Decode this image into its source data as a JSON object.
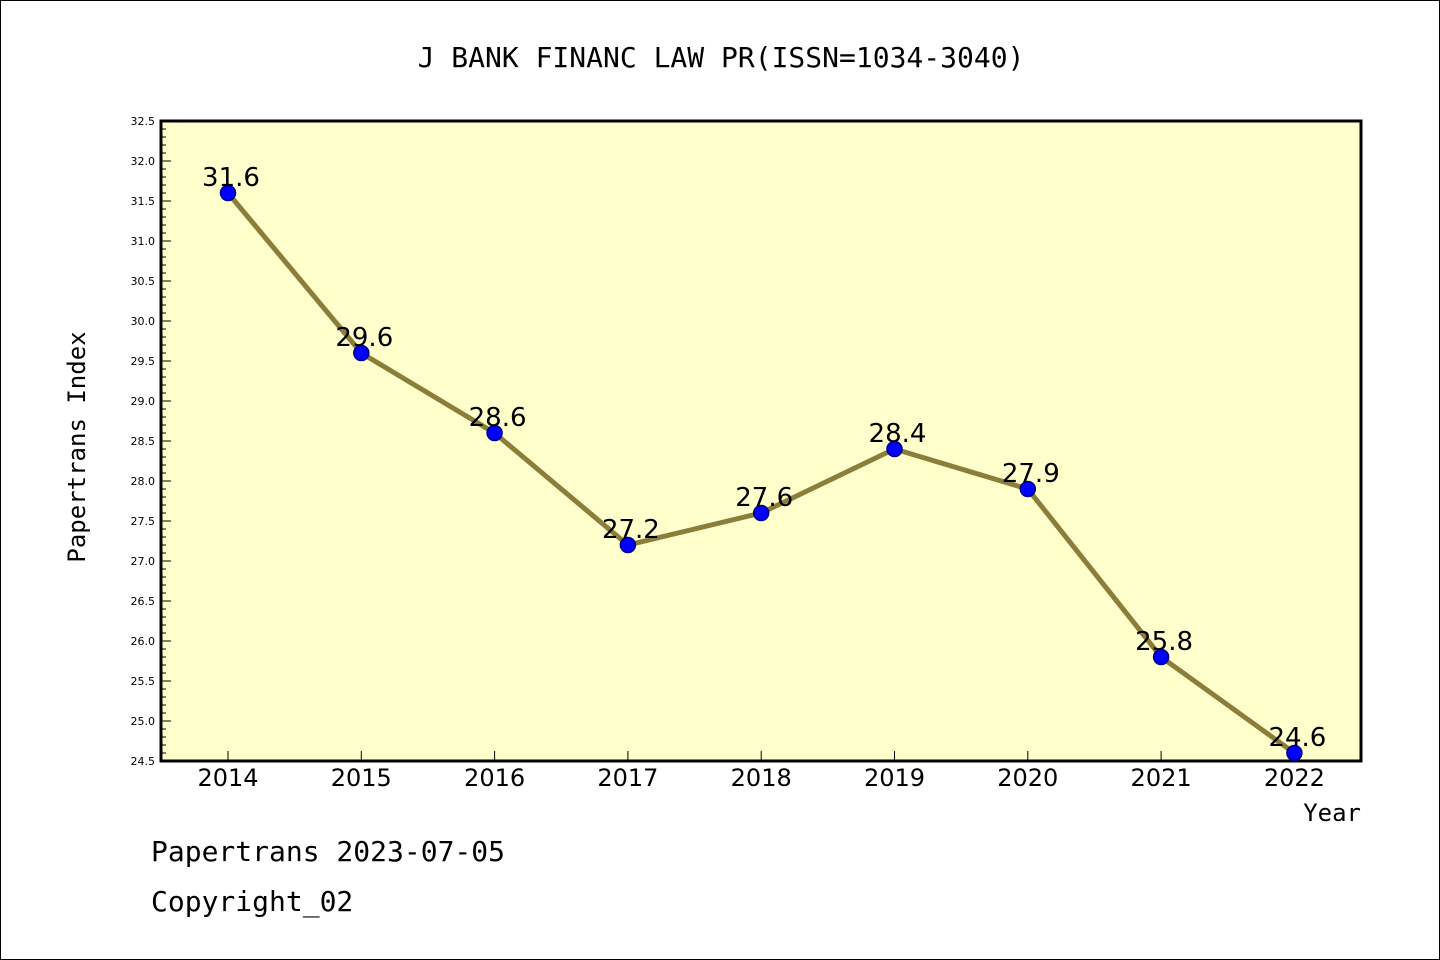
{
  "chart_data": {
    "type": "line",
    "title": "J BANK FINANC LAW PR(ISSN=1034-3040)",
    "xlabel": "Year",
    "ylabel": "Papertrans Index",
    "categories": [
      "2014",
      "2015",
      "2016",
      "2017",
      "2018",
      "2019",
      "2020",
      "2021",
      "2022"
    ],
    "values": [
      31.6,
      29.6,
      28.6,
      27.2,
      27.6,
      28.4,
      27.9,
      25.8,
      24.6
    ],
    "data_labels": [
      "31.6",
      "29.6",
      "28.6",
      "27.2",
      "27.6",
      "28.4",
      "27.9",
      "25.8",
      "24.6"
    ],
    "ylim": [
      24.5,
      32.5
    ],
    "yticks": [
      "24.5",
      "25.0",
      "25.5",
      "26.0",
      "26.5",
      "27.0",
      "27.5",
      "28.0",
      "28.5",
      "29.0",
      "29.5",
      "30.0",
      "30.5",
      "31.0",
      "31.5",
      "32.0",
      "32.5"
    ],
    "grid": false,
    "legend": "none",
    "colors": {
      "plot_background": "#ffffcc",
      "line": "#8b7d3a",
      "marker": "#0000ff",
      "marker_edge": "#00008b"
    }
  },
  "footer": {
    "date_text": "Papertrans 2023-07-05",
    "copyright_text": "Copyright_02"
  }
}
